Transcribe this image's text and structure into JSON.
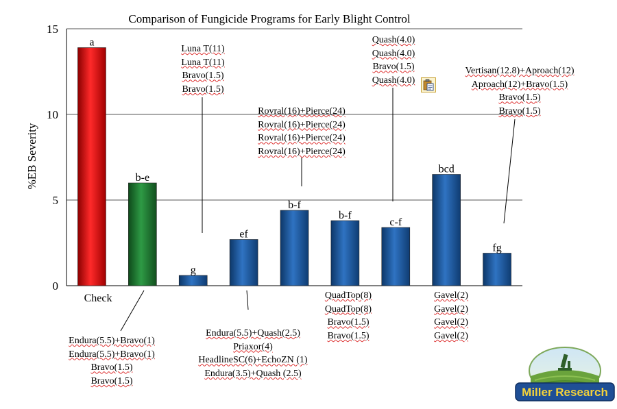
{
  "chart_data": {
    "type": "bar",
    "title": "Comparison of Fungicide Programs for Early Blight Control",
    "ylabel": "%EB Severity",
    "ylim": [
      0,
      15
    ],
    "yticks": [
      "0",
      "5",
      "10",
      "15"
    ],
    "grid": true,
    "category_label": "Check",
    "values": [
      13.9,
      6.0,
      0.6,
      2.7,
      4.4,
      3.8,
      3.4,
      6.5,
      1.9
    ],
    "letters": [
      "a",
      "b-e",
      "g",
      "ef",
      "b-f",
      "b-f",
      "c-f",
      "bcd",
      "fg"
    ],
    "colors": [
      "#e00000",
      "#1f7a2e",
      "#1f5fa8",
      "#1f5fa8",
      "#1f5fa8",
      "#1f5fa8",
      "#1f5fa8",
      "#1f5fa8",
      "#1f5fa8"
    ]
  },
  "programs": {
    "p2": [
      "Endura(5.5)+Bravo(1)",
      "Endura(5.5)+Bravo(1)",
      "Bravo(1.5)",
      "Bravo(1.5)"
    ],
    "p3": [
      "Luna T(11)",
      "Luna T(11)",
      "Bravo(1.5)",
      "Bravo(1.5)"
    ],
    "p4": [
      "Endura(5.5)+Quash(2.5)",
      "Priaxor(4)",
      "HeadlineSC(6)+EchoZN (1)",
      "Endura(3.5)+Quash (2.5)"
    ],
    "p5": [
      "Rovral(16)+Pierce(24)",
      "Rovral(16)+Pierce(24)",
      "Rovral(16)+Pierce(24)",
      "Rovral(16)+Pierce(24)"
    ],
    "p6": [
      "QuadTop(8)",
      "QuadTop(8)",
      "Bravo(1.5)",
      "Bravo(1.5)"
    ],
    "p7": [
      "Quash(4.0)",
      "Quash(4.0)",
      "Bravo(1.5)",
      "Quash(4.0)"
    ],
    "p8": [
      "Gavel(2)",
      "Gavel(2)",
      "Gavel(2)",
      "Gavel(2)"
    ],
    "p9": [
      "Vertisan(12.8)+Aproach(12)",
      "Aproach(12)+Bravo(1.5)",
      "Bravo(1.5)",
      "Bravo(1.5)"
    ]
  },
  "logo_text": "Miller Research"
}
